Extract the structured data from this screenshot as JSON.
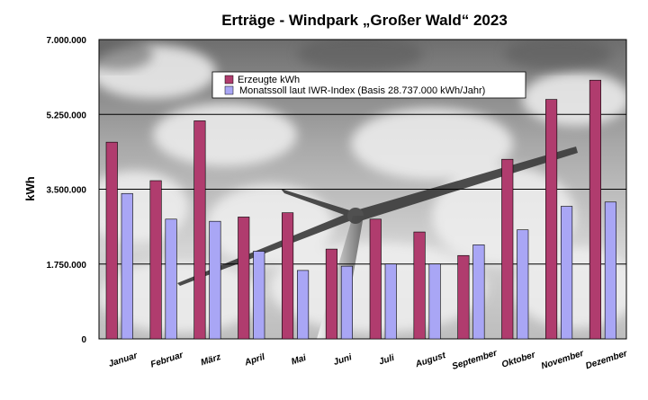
{
  "chart_data": {
    "type": "bar",
    "title": "Erträge - Windpark „Großer Wald“ 2023",
    "xlabel": "",
    "ylabel": "kWh",
    "ylim": [
      0,
      7000000
    ],
    "yticks": [
      "0",
      "1.750.000",
      "3.500.000",
      "5.250.000",
      "7.000.000"
    ],
    "ytick_values": [
      0,
      1750000,
      3500000,
      5250000,
      7000000
    ],
    "grid": true,
    "legend_position": "top-center",
    "categories": [
      "Januar",
      "Februar",
      "März",
      "April",
      "Mai",
      "Juni",
      "Juli",
      "August",
      "September",
      "Oktober",
      "November",
      "Dezember"
    ],
    "series": [
      {
        "name": "Erzeugte kWh",
        "color": "#b03c6e",
        "values": [
          4600000,
          3700000,
          5100000,
          2850000,
          2950000,
          2100000,
          2800000,
          2500000,
          1950000,
          4200000,
          5600000,
          6050000
        ]
      },
      {
        "name": "Monatssoll laut IWR-Index (Basis 28.737.000 kWh/Jahr)",
        "color": "#a9a6f5",
        "values": [
          3400000,
          2800000,
          2750000,
          2050000,
          1600000,
          1700000,
          1750000,
          1750000,
          2200000,
          2550000,
          3100000,
          3200000
        ]
      }
    ]
  }
}
